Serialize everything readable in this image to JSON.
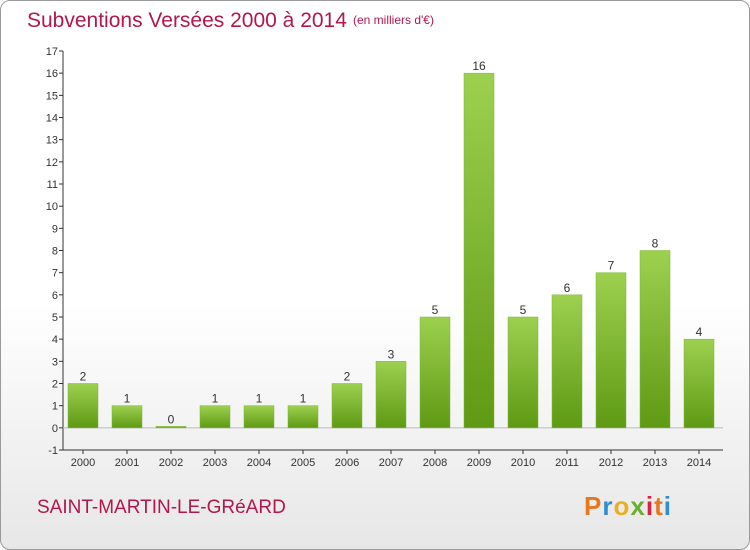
{
  "header": {
    "title": "Subventions Versées 2000 à 2014",
    "unit": "(en milliers d'€)"
  },
  "footer": {
    "commune": "SAINT-MARTIN-LE-GRéARD",
    "logo": "Proxiti",
    "logo_colors": [
      "#e8781e",
      "#2f8fd0",
      "#e8b020",
      "#6ab02e",
      "#d8243a",
      "#e8781e",
      "#2f8fd0"
    ]
  },
  "colors": {
    "title": "#b3174b",
    "bar_light": "#9dd04f",
    "bar_dark": "#5e9a14",
    "axis": "#333333"
  },
  "chart_data": {
    "type": "bar",
    "title": "Subventions Versées 2000 à 2014",
    "subtitle": "(en milliers d'€)",
    "xlabel": "",
    "ylabel": "",
    "categories": [
      "2000",
      "2001",
      "2002",
      "2003",
      "2004",
      "2005",
      "2006",
      "2007",
      "2008",
      "2009",
      "2010",
      "2011",
      "2012",
      "2013",
      "2014"
    ],
    "values": [
      2,
      1,
      0,
      1,
      1,
      1,
      2,
      3,
      5,
      16,
      5,
      6,
      7,
      8,
      4
    ],
    "ylim": [
      -1,
      17
    ],
    "yticks": [
      -1,
      0,
      1,
      2,
      3,
      4,
      5,
      6,
      7,
      8,
      9,
      10,
      11,
      12,
      13,
      14,
      15,
      16,
      17
    ],
    "grid": false,
    "legend": "none"
  }
}
